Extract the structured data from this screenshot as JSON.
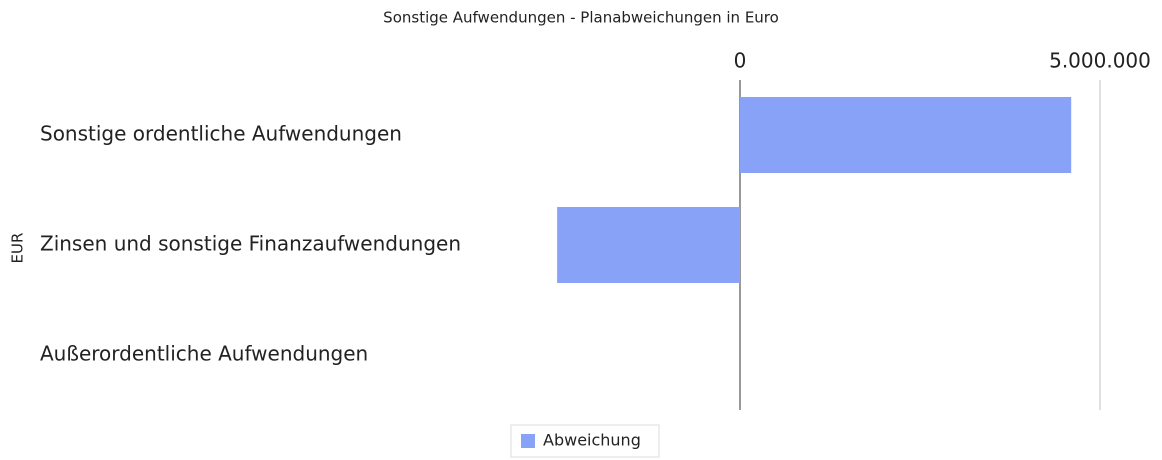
{
  "chart_data": {
    "type": "bar",
    "orientation": "horizontal",
    "title": "Sonstige Aufwendungen - Planabweichungen in Euro",
    "ylabel": "EUR",
    "categories": [
      "Sonstige ordentliche Aufwendungen",
      "Zinsen und sonstige Finanzaufwendungen",
      "Außerordentliche Aufwendungen"
    ],
    "series": [
      {
        "name": "Abweichung",
        "color": "#87a2f7",
        "values": [
          4600000,
          -2540000,
          0
        ]
      }
    ],
    "xlim": [
      -5000000,
      5000000
    ],
    "xticks": [
      0,
      {
        "value": 5000000,
        "label": "5.000.000"
      }
    ],
    "grid": true,
    "legend": "bottom"
  }
}
